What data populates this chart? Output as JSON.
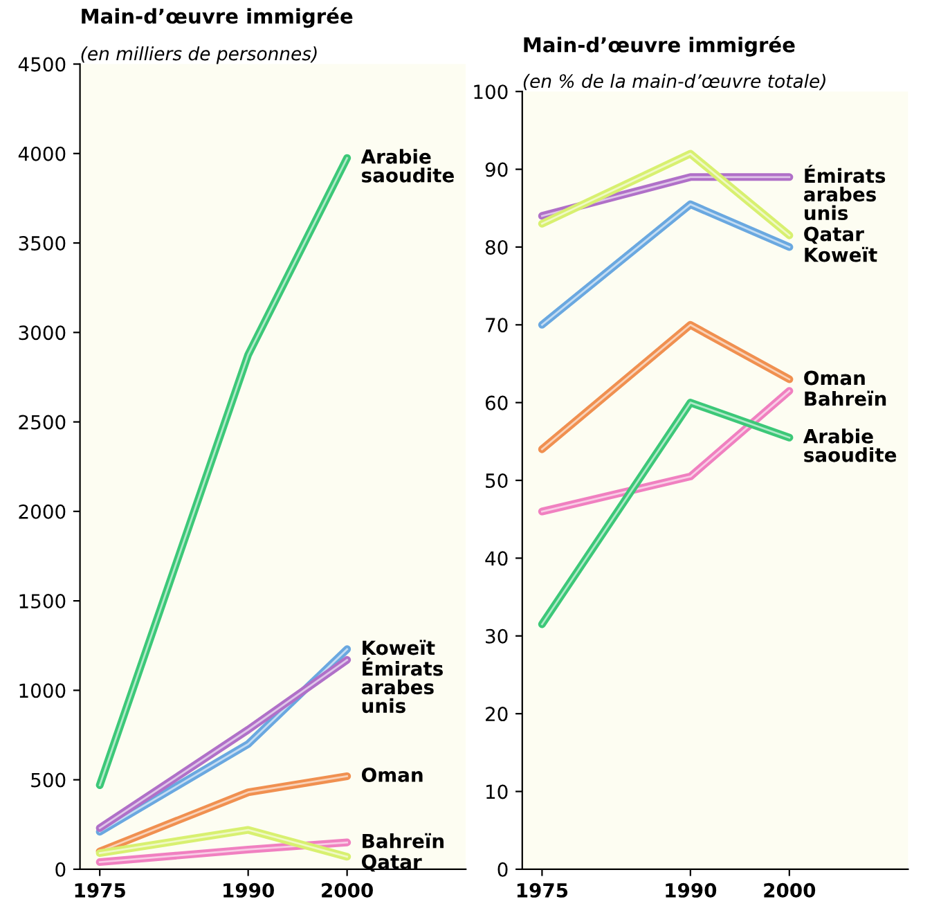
{
  "chart_data": [
    {
      "type": "line",
      "title": "Main-d’œuvre immigrée",
      "subtitle": "(en milliers de personnes)",
      "x": [
        1975,
        1990,
        2000
      ],
      "xlim": [
        1973,
        2012
      ],
      "xticks": [
        1975,
        1990,
        2000
      ],
      "ylim": [
        0,
        4500
      ],
      "yticks": [
        0,
        500,
        1000,
        1500,
        2000,
        2500,
        3000,
        3500,
        4000,
        4500
      ],
      "grid": false,
      "legend": false,
      "marker": "none",
      "line_style": "solid",
      "series": [
        {
          "name": "Arabie\nsaoudite",
          "color": "#3cc878",
          "values": [
            470,
            2875,
            3975
          ]
        },
        {
          "name": "Koweït",
          "color": "#6aa8e0",
          "values": [
            210,
            700,
            1230
          ]
        },
        {
          "name": "Émirats\narabes\nunis",
          "color": "#b070c8",
          "values": [
            230,
            780,
            1170
          ]
        },
        {
          "name": "Oman",
          "color": "#f09050",
          "values": [
            100,
            430,
            520
          ]
        },
        {
          "name": "Bahreïn",
          "color": "#f080c0",
          "values": [
            40,
            110,
            150
          ]
        },
        {
          "name": "Qatar",
          "color": "#d8f070",
          "values": [
            90,
            220,
            70
          ]
        }
      ]
    },
    {
      "type": "line",
      "title": "Main-d’œuvre immigrée",
      "subtitle": "(en % de la main-d’œuvre totale)",
      "x": [
        1975,
        1990,
        2000
      ],
      "xlim": [
        1973,
        2012
      ],
      "xticks": [
        1975,
        1990,
        2000
      ],
      "ylim": [
        0,
        100
      ],
      "yticks": [
        0,
        10,
        20,
        30,
        40,
        50,
        60,
        70,
        80,
        90,
        100
      ],
      "grid": false,
      "legend": false,
      "marker": "none",
      "line_style": "solid",
      "series": [
        {
          "name": "Émirats\narabes\nunis",
          "color": "#b070c8",
          "values": [
            84,
            89,
            89
          ]
        },
        {
          "name": "Qatar",
          "color": "#d8f070",
          "values": [
            83,
            92,
            81.5
          ]
        },
        {
          "name": "Koweït",
          "color": "#6aa8e0",
          "values": [
            70,
            85.5,
            80
          ]
        },
        {
          "name": "Oman",
          "color": "#f09050",
          "values": [
            54,
            70,
            63
          ]
        },
        {
          "name": "Bahreïn",
          "color": "#f080c0",
          "values": [
            46,
            50.5,
            61.5
          ]
        },
        {
          "name": "Arabie\nsaoudite",
          "color": "#3cc878",
          "values": [
            31.5,
            60,
            55.5
          ]
        }
      ]
    }
  ]
}
